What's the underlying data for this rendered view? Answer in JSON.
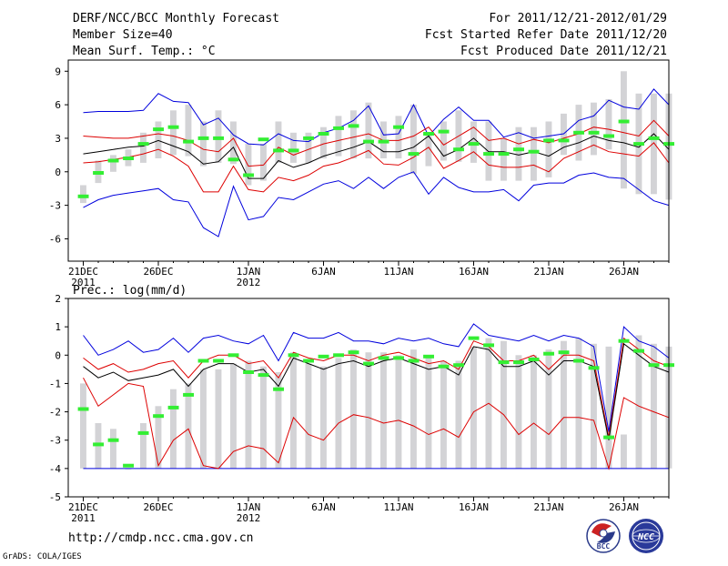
{
  "header": {
    "title": "DERF/NCC/BCC Monthly Forecast",
    "member_size": "Member Size=40",
    "variable": "Mean Surf. Temp.: °C",
    "forecast_period": "For 2011/12/21-2012/01/29",
    "started_refer": "Fcst Started Refer Date 2011/12/20",
    "produced": "Fcst Produced Date 2011/12/21"
  },
  "footer": {
    "url": "http://cmdp.ncc.cma.gov.cn",
    "grads": "GrADS: COLA/IGES",
    "logo_bcc": "BCC",
    "logo_ncc": "NCC"
  },
  "colors": {
    "box": "#d3d3d6",
    "median": "#33ee33",
    "mean": "#000000",
    "std": "#dd0000",
    "range": "#0000dd"
  },
  "chart_data": [
    {
      "type": "box-line",
      "title": "Mean Surf. Temp.: °C",
      "ylabel": "°C",
      "ylim": [
        -8,
        10
      ],
      "yticks": [
        -6,
        -3,
        0,
        3,
        6,
        9
      ],
      "xlim": [
        0,
        40
      ],
      "xticks": [
        {
          "day": 1,
          "label": "21DEC",
          "sub": "2011"
        },
        {
          "day": 6,
          "label": "26DEC",
          "sub": ""
        },
        {
          "day": 12,
          "label": "1JAN",
          "sub": "2012"
        },
        {
          "day": 17,
          "label": "6JAN",
          "sub": ""
        },
        {
          "day": 22,
          "label": "11JAN",
          "sub": ""
        },
        {
          "day": 27,
          "label": "16JAN",
          "sub": ""
        },
        {
          "day": 32,
          "label": "21JAN",
          "sub": ""
        },
        {
          "day": 37,
          "label": "26JAN",
          "sub": ""
        }
      ],
      "days": [
        1,
        2,
        3,
        4,
        5,
        6,
        7,
        8,
        9,
        10,
        11,
        12,
        13,
        14,
        15,
        16,
        17,
        18,
        19,
        20,
        21,
        22,
        23,
        24,
        25,
        26,
        27,
        28,
        29,
        30,
        31,
        32,
        33,
        34,
        35,
        36,
        37,
        38,
        39,
        40
      ],
      "box_low": [
        -2.8,
        -1.0,
        0.0,
        0.5,
        0.8,
        1.2,
        1.5,
        1.4,
        0.5,
        0.8,
        0.7,
        -1.2,
        -0.8,
        0.8,
        0.8,
        0.8,
        1.2,
        1.4,
        1.2,
        1.2,
        1.2,
        1.2,
        -0.2,
        0.5,
        1.0,
        0.9,
        0.8,
        -0.8,
        -0.8,
        -0.8,
        -0.8,
        -0.5,
        1.5,
        1.0,
        1.5,
        2.0,
        -1.5,
        -2.0,
        -2.0,
        -2.5
      ],
      "box_high": [
        -1.2,
        1.0,
        1.5,
        2.0,
        3.5,
        4.5,
        5.5,
        6.0,
        4.5,
        5.5,
        4.5,
        2.5,
        2.5,
        4.5,
        3.5,
        3.5,
        4.0,
        5.0,
        5.5,
        6.2,
        4.5,
        5.0,
        6.0,
        3.5,
        4.5,
        5.5,
        4.5,
        4.5,
        3.0,
        4.0,
        4.0,
        4.5,
        5.2,
        6.0,
        6.2,
        6.5,
        9.0,
        7.0,
        7.0,
        7.0
      ],
      "median": [
        -2.2,
        -0.1,
        1.0,
        1.2,
        2.5,
        3.8,
        4.0,
        2.7,
        3.0,
        3.0,
        1.1,
        -0.3,
        2.9,
        1.9,
        1.9,
        3.0,
        3.4,
        3.9,
        4.1,
        2.7,
        2.7,
        4.0,
        1.6,
        3.4,
        3.6,
        2.0,
        2.5,
        1.6,
        1.6,
        2.0,
        1.8,
        2.8,
        2.8,
        3.5,
        3.5,
        3.2,
        4.5,
        2.5,
        3.0,
        2.5
      ],
      "mean": [
        1.6,
        1.8,
        2.0,
        2.2,
        2.3,
        2.8,
        2.3,
        1.8,
        0.7,
        0.9,
        2.2,
        -0.6,
        -0.6,
        1.0,
        0.4,
        0.8,
        1.4,
        1.8,
        2.2,
        2.7,
        1.8,
        1.8,
        2.2,
        3.2,
        1.4,
        2.0,
        3.0,
        1.8,
        1.8,
        1.5,
        1.8,
        1.4,
        2.2,
        2.6,
        3.2,
        2.8,
        2.6,
        2.2,
        3.4,
        2.0
      ],
      "std_high": [
        3.2,
        3.1,
        3.0,
        3.0,
        3.2,
        3.4,
        3.2,
        2.8,
        2.0,
        1.8,
        3.0,
        0.5,
        0.6,
        2.2,
        1.5,
        2.0,
        2.5,
        2.8,
        3.1,
        3.4,
        2.8,
        2.8,
        3.2,
        4.0,
        2.4,
        3.2,
        4.0,
        2.8,
        3.0,
        2.5,
        2.9,
        2.6,
        3.0,
        3.4,
        4.0,
        3.8,
        3.5,
        3.2,
        4.6,
        3.2
      ],
      "std_low": [
        0.8,
        0.9,
        1.1,
        1.3,
        1.6,
        2.0,
        1.4,
        0.5,
        -1.8,
        -1.8,
        0.5,
        -1.6,
        -1.8,
        -0.5,
        -0.8,
        -0.3,
        0.5,
        0.8,
        1.3,
        1.9,
        0.7,
        0.6,
        1.3,
        2.2,
        0.3,
        1.0,
        1.8,
        0.6,
        0.4,
        0.4,
        0.6,
        0.0,
        1.2,
        1.8,
        2.4,
        1.8,
        1.6,
        1.4,
        2.6,
        0.8
      ],
      "max": [
        5.3,
        5.4,
        5.4,
        5.4,
        5.5,
        7.0,
        6.3,
        6.2,
        4.2,
        4.8,
        3.3,
        2.5,
        2.4,
        3.4,
        2.8,
        2.7,
        3.5,
        3.9,
        4.6,
        5.9,
        3.3,
        3.4,
        6.0,
        3.2,
        4.7,
        5.8,
        4.6,
        4.6,
        3.1,
        3.5,
        3.0,
        3.2,
        3.4,
        4.6,
        5.0,
        6.4,
        5.8,
        5.6,
        7.4,
        6.0
      ],
      "min": [
        -3.2,
        -2.5,
        -2.1,
        -1.9,
        -1.7,
        -1.5,
        -2.5,
        -2.7,
        -5.0,
        -5.8,
        -1.3,
        -4.3,
        -4.0,
        -2.3,
        -2.5,
        -1.8,
        -1.1,
        -0.8,
        -1.5,
        -0.5,
        -1.5,
        -0.5,
        0.0,
        -2.0,
        -0.5,
        -1.4,
        -1.8,
        -1.8,
        -1.6,
        -2.6,
        -1.2,
        -1.0,
        -1.0,
        -0.3,
        -0.1,
        -0.5,
        -0.6,
        -1.6,
        -2.6,
        -3.0
      ]
    },
    {
      "type": "box-line",
      "title": "Prec.: log(mm/d)",
      "ylabel": "log(mm/d)",
      "ylim": [
        -5,
        2
      ],
      "yticks": [
        -5,
        -4,
        -3,
        -2,
        -1,
        0,
        1,
        2
      ],
      "xlim": [
        0,
        40
      ],
      "xticks": [
        {
          "day": 1,
          "label": "21DEC",
          "sub": "2011"
        },
        {
          "day": 6,
          "label": "26DEC",
          "sub": ""
        },
        {
          "day": 12,
          "label": "1JAN",
          "sub": "2012"
        },
        {
          "day": 17,
          "label": "6JAN",
          "sub": ""
        },
        {
          "day": 22,
          "label": "11JAN",
          "sub": ""
        },
        {
          "day": 27,
          "label": "16JAN",
          "sub": ""
        },
        {
          "day": 32,
          "label": "21JAN",
          "sub": ""
        },
        {
          "day": 37,
          "label": "26JAN",
          "sub": ""
        }
      ],
      "days": [
        1,
        2,
        3,
        4,
        5,
        6,
        7,
        8,
        9,
        10,
        11,
        12,
        13,
        14,
        15,
        16,
        17,
        18,
        19,
        20,
        21,
        22,
        23,
        24,
        25,
        26,
        27,
        28,
        29,
        30,
        31,
        32,
        33,
        34,
        35,
        36,
        37,
        38,
        39,
        40
      ],
      "box_low": [
        -4.0,
        -4.0,
        -4.0,
        -4.0,
        -4.0,
        -4.0,
        -4.0,
        -4.0,
        -4.0,
        -4.0,
        -4.0,
        -4.0,
        -4.0,
        -4.0,
        -4.0,
        -4.0,
        -4.0,
        -4.0,
        -4.0,
        -4.0,
        -4.0,
        -4.0,
        -4.0,
        -4.0,
        -4.0,
        -4.0,
        -4.0,
        -4.0,
        -4.0,
        -4.0,
        -4.0,
        -4.0,
        -4.0,
        -4.0,
        -4.0,
        -4.0,
        -4.0,
        -4.0,
        -4.0,
        -4.0
      ],
      "box_high": [
        -1.0,
        -2.4,
        -2.6,
        -4.0,
        -2.4,
        -1.8,
        -1.2,
        -1.0,
        -0.5,
        -0.5,
        -0.3,
        -0.2,
        -0.4,
        -0.6,
        0.1,
        -0.3,
        -0.4,
        -0.1,
        0.2,
        0.1,
        0.1,
        0.0,
        0.2,
        -0.1,
        -0.2,
        -0.2,
        0.3,
        0.6,
        0.5,
        0.0,
        0.0,
        0.2,
        0.5,
        0.6,
        0.4,
        0.3,
        -2.8,
        0.7,
        0.4,
        0.3
      ],
      "median": [
        -1.9,
        -3.15,
        -3.0,
        -3.9,
        -2.75,
        -2.15,
        -1.85,
        -1.4,
        -0.2,
        -0.2,
        0.0,
        -0.6,
        -0.7,
        -1.2,
        0.0,
        -0.2,
        -0.05,
        0.0,
        0.1,
        -0.3,
        -0.1,
        -0.1,
        -0.2,
        -0.05,
        -0.4,
        -0.35,
        0.6,
        0.35,
        -0.25,
        -0.25,
        -0.15,
        0.05,
        0.1,
        -0.2,
        -0.45,
        -2.9,
        0.5,
        0.15,
        -0.35,
        -0.35
      ],
      "mean": [
        -0.4,
        -0.8,
        -0.6,
        -0.9,
        -0.8,
        -0.7,
        -0.5,
        -1.1,
        -0.5,
        -0.3,
        -0.3,
        -0.6,
        -0.5,
        -1.1,
        -0.1,
        -0.3,
        -0.5,
        -0.3,
        -0.2,
        -0.4,
        -0.2,
        -0.1,
        -0.3,
        -0.5,
        -0.4,
        -0.7,
        0.3,
        0.2,
        -0.4,
        -0.4,
        -0.2,
        -0.7,
        -0.2,
        -0.2,
        -0.4,
        -3.0,
        0.4,
        0.0,
        -0.4,
        -0.6
      ],
      "std_high": [
        -0.1,
        -0.5,
        -0.3,
        -0.6,
        -0.5,
        -0.3,
        -0.2,
        -0.8,
        -0.2,
        0.0,
        0.0,
        -0.3,
        -0.2,
        -0.8,
        0.1,
        -0.1,
        -0.2,
        0.0,
        0.0,
        -0.2,
        0.0,
        0.1,
        -0.1,
        -0.3,
        -0.2,
        -0.5,
        0.5,
        0.3,
        -0.2,
        -0.2,
        0.0,
        -0.5,
        0.0,
        0.0,
        -0.2,
        -2.9,
        0.6,
        0.2,
        -0.2,
        -0.4
      ],
      "std_low": [
        -0.8,
        -1.8,
        -1.4,
        -1.0,
        -1.1,
        -3.9,
        -3.0,
        -2.6,
        -3.9,
        -4.0,
        -3.4,
        -3.2,
        -3.3,
        -3.8,
        -2.2,
        -2.8,
        -3.0,
        -2.4,
        -2.1,
        -2.2,
        -2.4,
        -2.3,
        -2.5,
        -2.8,
        -2.6,
        -2.9,
        -2.0,
        -1.7,
        -2.1,
        -2.8,
        -2.4,
        -2.8,
        -2.2,
        -2.2,
        -2.3,
        -4.0,
        -1.5,
        -1.8,
        -2.0,
        -2.2
      ],
      "max": [
        0.7,
        0.0,
        0.2,
        0.5,
        0.1,
        0.2,
        0.6,
        0.1,
        0.6,
        0.7,
        0.5,
        0.4,
        0.7,
        -0.2,
        0.8,
        0.6,
        0.6,
        0.8,
        0.5,
        0.5,
        0.4,
        0.6,
        0.5,
        0.6,
        0.4,
        0.3,
        1.1,
        0.7,
        0.6,
        0.5,
        0.7,
        0.5,
        0.7,
        0.6,
        0.3,
        -2.7,
        1.0,
        0.5,
        0.3,
        -0.1
      ],
      "min": [
        -4.0,
        -4.0,
        -4.0,
        -4.0,
        -4.0,
        -4.0,
        -4.0,
        -4.0,
        -4.0,
        -4.0,
        -4.0,
        -4.0,
        -4.0,
        -4.0,
        -4.0,
        -4.0,
        -4.0,
        -4.0,
        -4.0,
        -4.0,
        -4.0,
        -4.0,
        -4.0,
        -4.0,
        -4.0,
        -4.0,
        -4.0,
        -4.0,
        -4.0,
        -4.0,
        -4.0,
        -4.0,
        -4.0,
        -4.0,
        -4.0,
        -4.0,
        -4.0,
        -4.0,
        -4.0,
        -4.0
      ]
    }
  ]
}
